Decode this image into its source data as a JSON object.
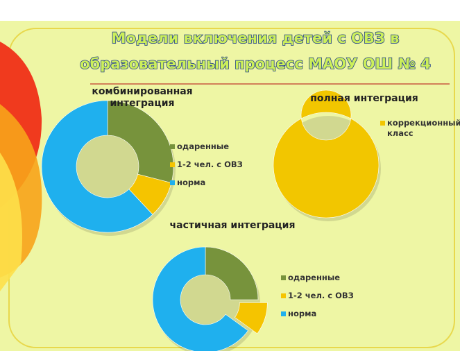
{
  "slide": {
    "title_lines": [
      "Модели включения детей с ОВЗ в",
      "образовательный процесс МАОУ ОШ № 4"
    ]
  },
  "chart_data": [
    {
      "type": "donut",
      "title": "комбинированная интеграция",
      "categories": [
        "одаренные",
        "1-2 чел. с ОВЗ",
        "норма"
      ],
      "values": [
        29,
        9,
        62
      ],
      "colors": [
        "#77933c",
        "#f5c400",
        "#1fb0ee"
      ],
      "exploded": [
        false,
        false,
        false
      ]
    },
    {
      "type": "donut",
      "title": "полная интеграция",
      "categories": [
        "коррекционный класс"
      ],
      "values": [
        100
      ],
      "colors": [
        "#f2c600"
      ],
      "exploded": [
        false
      ]
    },
    {
      "type": "donut",
      "title": "частичная интеграция",
      "categories": [
        "одаренные",
        "1-2 чел. с ОВЗ",
        "норма"
      ],
      "values": [
        25,
        10,
        65
      ],
      "colors": [
        "#77933c",
        "#f5c400",
        "#1fb0ee"
      ],
      "exploded": [
        false,
        true,
        false
      ]
    }
  ]
}
